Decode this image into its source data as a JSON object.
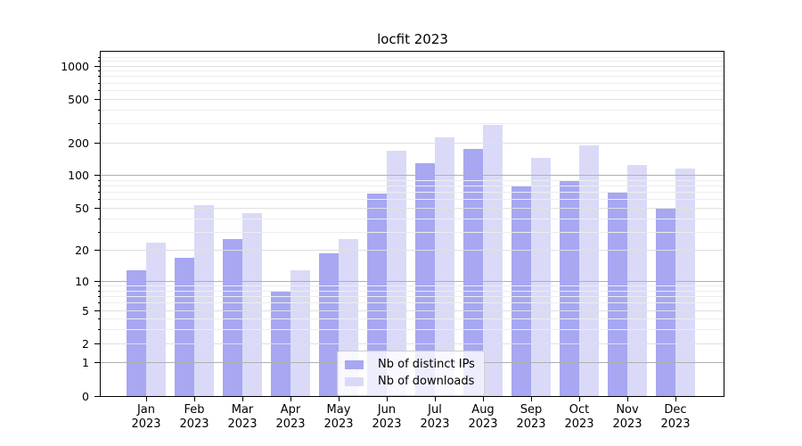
{
  "chart_data": {
    "type": "bar",
    "title": "locfit 2023",
    "year_label": "2023",
    "months": [
      "Jan",
      "Feb",
      "Mar",
      "Apr",
      "May",
      "Jun",
      "Jul",
      "Aug",
      "Sep",
      "Oct",
      "Nov",
      "Dec"
    ],
    "categories": [
      "Jan 2023",
      "Feb 2023",
      "Mar 2023",
      "Apr 2023",
      "May 2023",
      "Jun 2023",
      "Jul 2023",
      "Aug 2023",
      "Sep 2023",
      "Oct 2023",
      "Nov 2023",
      "Dec 2023"
    ],
    "series": [
      {
        "name": "Nb of distinct IPs",
        "color": "#a7a7f2",
        "values": [
          13,
          17,
          26,
          8,
          19,
          68,
          130,
          175,
          81,
          89,
          70,
          50
        ]
      },
      {
        "name": "Nb of downloads",
        "color": "#dadaf8",
        "values": [
          24,
          53,
          45,
          13,
          26,
          170,
          225,
          290,
          145,
          188,
          126,
          115
        ]
      }
    ],
    "xlabel": "",
    "ylabel": "",
    "yscale": "log10(1+x)",
    "yticks": [
      0,
      1,
      2,
      5,
      10,
      20,
      50,
      100,
      200,
      500,
      1000
    ],
    "ytick_labels": [
      "0",
      "1",
      "2",
      "5",
      "10",
      "20",
      "50",
      "100",
      "200",
      "500",
      "1000"
    ],
    "ylim": [
      0,
      1350
    ],
    "grid": true,
    "legend_position": "lower center",
    "gridline_levels": {
      "dark": [
        1,
        10,
        100
      ],
      "light": [
        2,
        5,
        20,
        50,
        200,
        500,
        1000
      ],
      "minor": [
        3,
        4,
        6,
        7,
        8,
        9,
        30,
        40,
        60,
        70,
        80,
        90,
        300,
        400,
        600,
        700,
        800,
        900,
        1100,
        1200
      ]
    },
    "colors": {
      "axis": "#000000",
      "grid_dark": "#b0b0b0",
      "grid_light": "#e0e0e0",
      "grid_minor": "#ededed",
      "background": "#ffffff"
    }
  }
}
